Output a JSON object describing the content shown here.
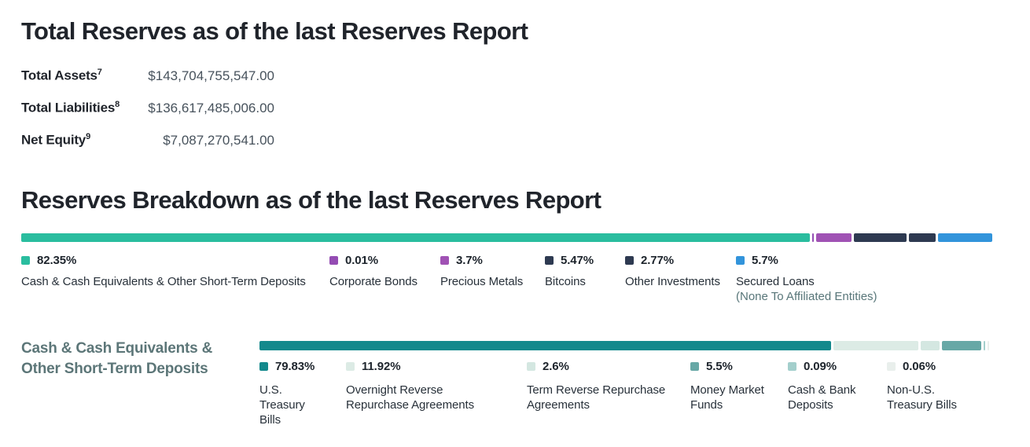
{
  "section_totals": {
    "title": "Total Reserves as of the last Reserves Report",
    "rows": [
      {
        "label": "Total Assets",
        "sup": "7",
        "value": "$143,704,755,547.00"
      },
      {
        "label": "Total Liabilities",
        "sup": "8",
        "value": "$136,617,485,006.00"
      },
      {
        "label": "Net Equity",
        "sup": "9",
        "value": "$7,087,270,541.00"
      }
    ]
  },
  "section_breakdown": {
    "title": "Reserves Breakdown as of the last Reserves Report",
    "segments": [
      {
        "pct": 82.35,
        "pct_label": "82.35%",
        "label": "Cash & Cash Equivalents & Other Short-Term Deposits",
        "color": "#2abd9f"
      },
      {
        "pct": 0.01,
        "pct_label": "0.01%",
        "label": "Corporate Bonds",
        "color": "#944cb3"
      },
      {
        "pct": 3.7,
        "pct_label": "3.7%",
        "label": "Precious Metals",
        "color": "#a052b4"
      },
      {
        "pct": 5.47,
        "pct_label": "5.47%",
        "label": "Bitcoins",
        "color": "#2e3a51"
      },
      {
        "pct": 2.77,
        "pct_label": "2.77%",
        "label": "Other Investments",
        "color": "#2e3a51"
      },
      {
        "pct": 5.7,
        "pct_label": "5.7%",
        "label": "Secured Loans",
        "sub": "(None To Affiliated Entities)",
        "color": "#3294db"
      }
    ]
  },
  "section_cash": {
    "row_label": "Cash & Cash Equivalents &\nOther Short-Term Deposits",
    "segments": [
      {
        "pct": 79.83,
        "pct_label": "79.83%",
        "label": "U.S.\nTreasury\nBills",
        "color": "#13898c"
      },
      {
        "pct": 11.92,
        "pct_label": "11.92%",
        "label": "Overnight Reverse\nRepurchase Agreements",
        "color": "#dcebe5"
      },
      {
        "pct": 2.6,
        "pct_label": "2.6%",
        "label": "Term Reverse Repurchase\nAgreements",
        "color": "#d4e7e1"
      },
      {
        "pct": 5.5,
        "pct_label": "5.5%",
        "label": "Money Market\nFunds",
        "color": "#67a8a6"
      },
      {
        "pct": 0.09,
        "pct_label": "0.09%",
        "label": "Cash & Bank\nDeposits",
        "color": "#a3cfcc"
      },
      {
        "pct": 0.06,
        "pct_label": "0.06%",
        "label": "Non-U.S.\nTreasury Bills",
        "color": "#e9efec"
      }
    ]
  },
  "chart_data": [
    {
      "type": "bar",
      "subtype": "stacked-horizontal",
      "title": "Reserves Breakdown as of the last Reserves Report",
      "unit": "%",
      "categories": [
        "Cash & Cash Equivalents & Other Short-Term Deposits",
        "Corporate Bonds",
        "Precious Metals",
        "Bitcoins",
        "Other Investments",
        "Secured Loans"
      ],
      "values": [
        82.35,
        0.01,
        3.7,
        5.47,
        2.77,
        5.7
      ],
      "colors": [
        "#2abd9f",
        "#944cb3",
        "#a052b4",
        "#2e3a51",
        "#2e3a51",
        "#3294db"
      ],
      "annotations": [
        "Secured Loans (None To Affiliated Entities)"
      ],
      "legend_position": "below-bar",
      "xlim": [
        0,
        100
      ]
    },
    {
      "type": "bar",
      "subtype": "stacked-horizontal",
      "title": "Cash & Cash Equivalents & Other Short-Term Deposits",
      "unit": "%",
      "categories": [
        "U.S. Treasury Bills",
        "Overnight Reverse Repurchase Agreements",
        "Term Reverse Repurchase Agreements",
        "Money Market Funds",
        "Cash & Bank Deposits",
        "Non-U.S. Treasury Bills"
      ],
      "values": [
        79.83,
        11.92,
        2.6,
        5.5,
        0.09,
        0.06
      ],
      "colors": [
        "#13898c",
        "#dcebe5",
        "#d4e7e1",
        "#67a8a6",
        "#a3cfcc",
        "#e9efec"
      ],
      "legend_position": "below-bar",
      "xlim": [
        0,
        100
      ]
    },
    {
      "type": "table",
      "title": "Total Reserves as of the last Reserves Report",
      "rows": [
        [
          "Total Assets",
          "$143,704,755,547.00"
        ],
        [
          "Total Liabilities",
          "$136,617,485,006.00"
        ],
        [
          "Net Equity",
          "$7,087,270,541.00"
        ]
      ]
    }
  ]
}
